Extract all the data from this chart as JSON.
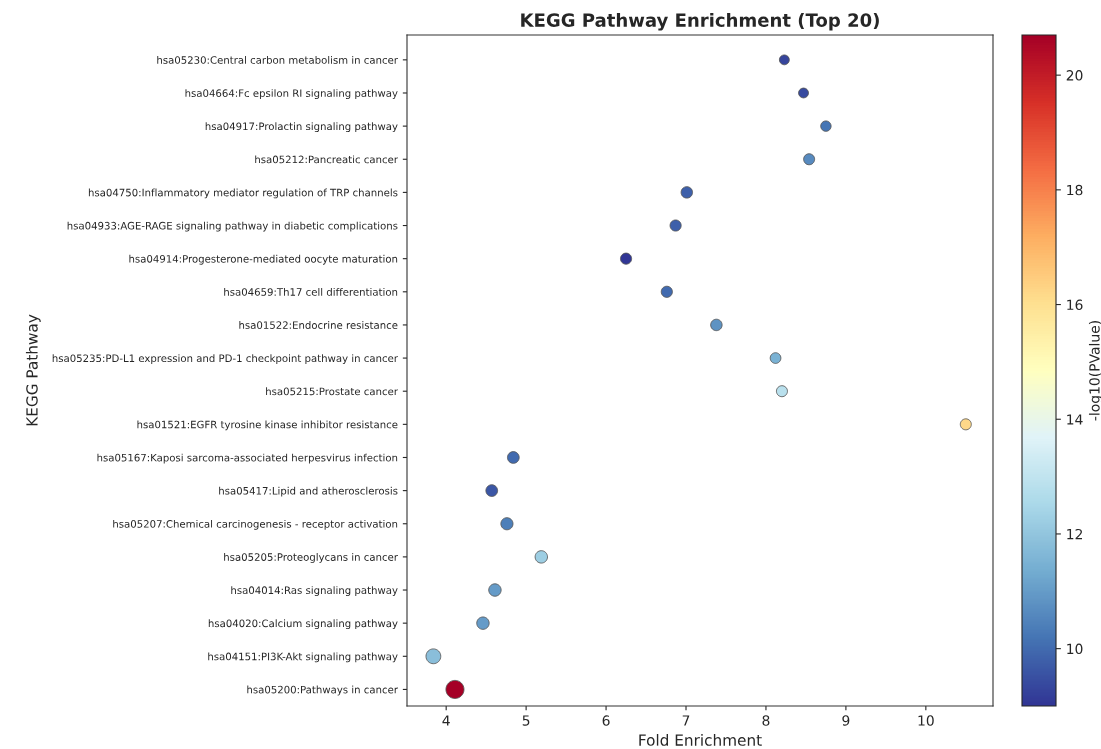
{
  "chart_data": {
    "type": "bubble",
    "title": "KEGG Pathway Enrichment (Top 20)",
    "xlabel": "Fold Enrichment",
    "ylabel": "KEGG Pathway",
    "clabel": "-log10(PValue)",
    "categories": [
      "hsa05230:Central carbon metabolism in cancer",
      "hsa04664:Fc epsilon RI signaling pathway",
      "hsa04917:Prolactin signaling pathway",
      "hsa05212:Pancreatic cancer",
      "hsa04750:Inflammatory mediator regulation of TRP channels",
      "hsa04933:AGE-RAGE signaling pathway in diabetic complications",
      "hsa04914:Progesterone-mediated oocyte maturation",
      "hsa04659:Th17 cell differentiation",
      "hsa01522:Endocrine resistance",
      "hsa05235:PD-L1 expression and PD-1 checkpoint pathway in cancer",
      "hsa05215:Prostate cancer",
      "hsa01521:EGFR tyrosine kinase inhibitor resistance",
      "hsa05167:Kaposi sarcoma-associated herpesvirus infection",
      "hsa05417:Lipid and atherosclerosis",
      "hsa05207:Chemical carcinogenesis - receptor activation",
      "hsa05205:Proteoglycans in cancer",
      "hsa04014:Ras signaling pathway",
      "hsa04020:Calcium signaling pathway",
      "hsa04151:PI3K-Akt signaling pathway",
      "hsa05200:Pathways in cancer"
    ],
    "values": [
      8.23,
      8.47,
      8.75,
      8.54,
      7.01,
      6.87,
      6.25,
      6.76,
      7.38,
      8.12,
      8.2,
      10.5,
      4.84,
      4.57,
      4.76,
      5.19,
      4.61,
      4.46,
      3.84,
      4.11
    ],
    "sizes": [
      0.3,
      0.3,
      0.33,
      0.37,
      0.4,
      0.38,
      0.38,
      0.38,
      0.4,
      0.35,
      0.37,
      0.37,
      0.42,
      0.42,
      0.45,
      0.47,
      0.47,
      0.47,
      0.67,
      1
    ],
    "cvalues": [
      9.3,
      9.4,
      10.2,
      10.6,
      9.8,
      9.8,
      9.0,
      10.0,
      10.8,
      11.5,
      12.8,
      16.2,
      10.0,
      9.6,
      10.4,
      12.2,
      11.0,
      11.0,
      11.8,
      20.7
    ],
    "clim": [
      9.0,
      20.7
    ],
    "cticks": [
      10,
      12,
      14,
      16,
      18,
      20
    ],
    "xlim": [
      3.51,
      10.84
    ],
    "xticks": [
      4,
      5,
      6,
      7,
      8,
      9,
      10
    ],
    "grid": false,
    "legend": false,
    "orientation": "horizontal",
    "marker": "circle"
  }
}
